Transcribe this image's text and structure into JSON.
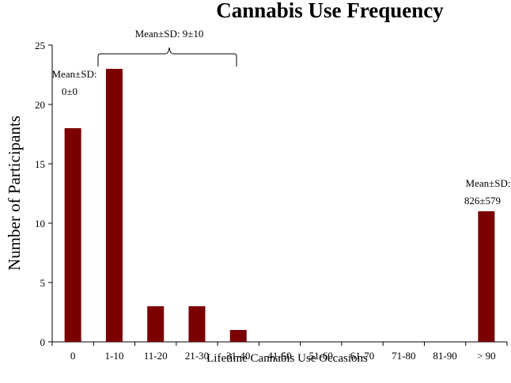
{
  "chart_data": {
    "type": "bar",
    "title": "Cannabis Use Frequency",
    "xlabel": "Lifetime Cannabis Use Occasions",
    "ylabel": "Number of Participants",
    "categories": [
      "0",
      "1-10",
      "11-20",
      "21-30",
      "31-40",
      "41-50",
      "51-60",
      "61-70",
      "71-80",
      "81-90",
      "> 90"
    ],
    "values": [
      18,
      23,
      3,
      3,
      1,
      0,
      0,
      0,
      0,
      0,
      11
    ],
    "ylim": [
      0,
      25
    ],
    "yticks": [
      0,
      5,
      10,
      15,
      20,
      25
    ],
    "grid": false,
    "bar_color": "#7b0000",
    "annotations": {
      "group_0": {
        "line1": "Mean±SD:",
        "line2": "0±0"
      },
      "group_1_40": {
        "text": "Mean±SD: 9±10"
      },
      "group_90": {
        "line1": "Mean±SD:",
        "line2": "826±579"
      }
    }
  }
}
